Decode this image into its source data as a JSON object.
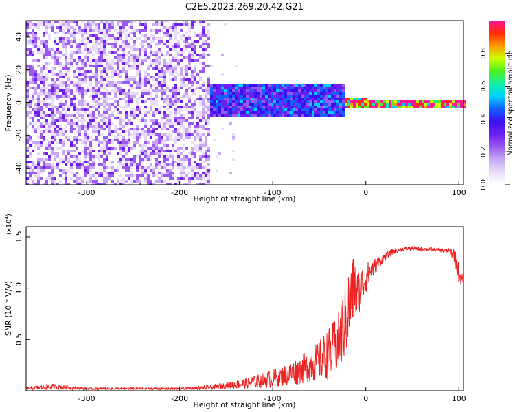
{
  "title": "C2E5.2023.269.20.42.G21",
  "colors": {
    "snr_line": "#ee2222",
    "axis": "#000000",
    "background": "#ffffff",
    "colormap": [
      "#ffffff",
      "#e8dcfb",
      "#c8a8f6",
      "#9a5af0",
      "#6f1ef0",
      "#3a10f0",
      "#1560ff",
      "#00d0ff",
      "#10f0a0",
      "#50f020",
      "#c8ff00",
      "#ff9a00",
      "#ff2a00",
      "#ff1493"
    ]
  },
  "chart_data": [
    {
      "type": "heatmap",
      "name": "spectrogram",
      "xlabel": "Height of straight line (km)",
      "ylabel": "Frequency (Hz)",
      "xlim": [
        -365,
        105
      ],
      "ylim": [
        -50,
        50
      ],
      "xticks": [
        -300,
        -200,
        -100,
        0,
        100
      ],
      "yticks": [
        -40,
        -20,
        0,
        20,
        40
      ],
      "colorbar": {
        "label": "Normalized spectral amplitude",
        "range": [
          0.0,
          1.0
        ],
        "ticks": [
          "0.0",
          "0.2",
          "0.4",
          "0.6",
          "0.8"
        ],
        "tick_values": [
          0.0,
          0.2,
          0.4,
          0.6,
          0.8
        ]
      },
      "regions": [
        {
          "description": "diffuse noise",
          "x_range": [
            -365,
            -170
          ],
          "freq_range": [
            -50,
            50
          ],
          "amplitude": 0.08
        },
        {
          "description": "broad signal band",
          "x_range": [
            -170,
            -25
          ],
          "freq_range": [
            -8,
            12
          ],
          "amplitude": 0.35
        },
        {
          "description": "narrowing signal",
          "x_range": [
            -25,
            0
          ],
          "freq_range": [
            -3,
            4
          ],
          "amplitude": 0.75
        },
        {
          "description": "narrow carrier line",
          "x_range": [
            0,
            105
          ],
          "freq_range": [
            -2,
            3
          ],
          "amplitude": 0.85
        }
      ]
    },
    {
      "type": "line",
      "name": "snr",
      "xlabel": "Height of straight line (km)",
      "ylabel": "SNR (10 * V/V)",
      "scale_label": "(x10",
      "scale_exponent": "4",
      "scale_suffix": ")",
      "xlim": [
        -365,
        105
      ],
      "ylim": [
        0,
        1.6
      ],
      "xticks": [
        -300,
        -200,
        -100,
        0,
        100
      ],
      "yticks": [
        0.5,
        1.0,
        1.5
      ],
      "ytick_labels": [
        "0.5",
        "1.0",
        "1.5"
      ],
      "series": [
        {
          "x": [
            -365,
            -340,
            -300,
            -250,
            -200,
            -170,
            -150,
            -130,
            -110,
            -90,
            -70,
            -50,
            -40,
            -30,
            -25,
            -20,
            -15,
            -12,
            -10,
            -5,
            0,
            10,
            20,
            30,
            40,
            50,
            60,
            70,
            80,
            90,
            95,
            100,
            102,
            105
          ],
          "y": [
            0.02,
            0.04,
            0.02,
            0.02,
            0.02,
            0.03,
            0.05,
            0.07,
            0.1,
            0.14,
            0.2,
            0.3,
            0.36,
            0.45,
            0.6,
            0.75,
            0.95,
            1.0,
            0.92,
            1.02,
            1.1,
            1.22,
            1.3,
            1.36,
            1.38,
            1.39,
            1.38,
            1.38,
            1.37,
            1.36,
            1.33,
            1.15,
            1.05,
            1.12
          ],
          "noise_amplitude": [
            0.01,
            0.03,
            0.01,
            0.01,
            0.01,
            0.02,
            0.03,
            0.05,
            0.08,
            0.1,
            0.14,
            0.2,
            0.25,
            0.3,
            0.35,
            0.4,
            0.4,
            0.3,
            0.25,
            0.2,
            0.15,
            0.08,
            0.04,
            0.03,
            0.02,
            0.02,
            0.02,
            0.02,
            0.02,
            0.03,
            0.08,
            0.1,
            0.06,
            0.05
          ]
        }
      ]
    }
  ]
}
